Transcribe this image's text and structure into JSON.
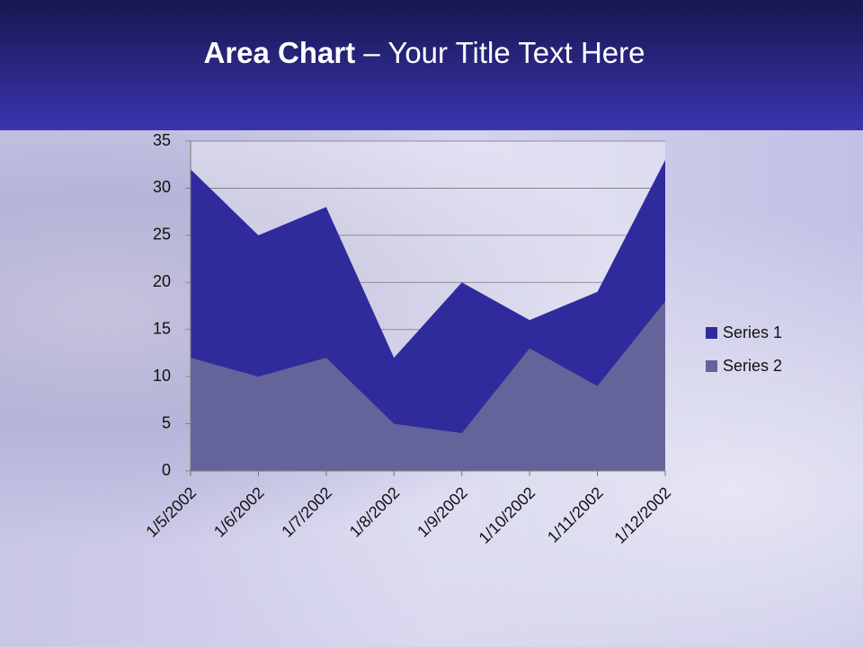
{
  "slide": {
    "title_bold": "Area Chart",
    "title_rest": "– Your Title Text Here"
  },
  "chart_data": {
    "type": "area",
    "stacked": false,
    "categories": [
      "1/5/2002",
      "1/6/2002",
      "1/7/2002",
      "1/8/2002",
      "1/9/2002",
      "1/10/2002",
      "1/11/2002",
      "1/12/2002"
    ],
    "series": [
      {
        "name": "Series 1",
        "color": "#2f2b9c",
        "values": [
          32,
          25,
          28,
          12,
          20,
          16,
          19,
          33
        ]
      },
      {
        "name": "Series 2",
        "color": "#64649a",
        "values": [
          12,
          10,
          12,
          5,
          4,
          13,
          9,
          18
        ]
      }
    ],
    "ylim": [
      0,
      35
    ],
    "yticks": [
      0,
      5,
      10,
      15,
      20,
      25,
      30,
      35
    ],
    "grid": true,
    "legend": "right"
  }
}
